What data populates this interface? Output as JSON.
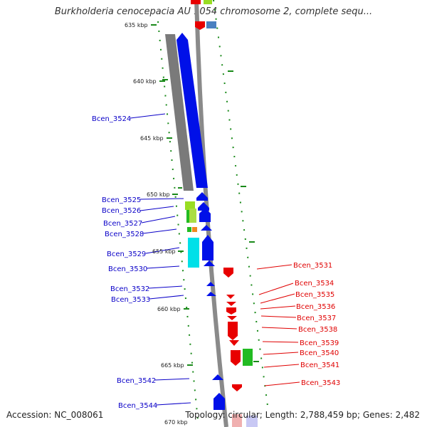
{
  "title": "Burkholderia cenocepacia AU 1054 chromosome 2, complete sequ...",
  "footer": {
    "accession": "Accession: NC_008061",
    "topology": "Topology: circular; Length: 2,788,459 bp; Genes: 2,482"
  },
  "scale_ticks": [
    "635 kbp",
    "640 kbp",
    "645 kbp",
    "650 kbp",
    "655 kbp",
    "660 kbp",
    "665 kbp",
    "670 kbp"
  ],
  "genes_left": [
    "Bcen_3524",
    "Bcen_3525",
    "Bcen_3526",
    "Bcen_3527",
    "Bcen_3528",
    "Bcen_3529",
    "Bcen_3530",
    "Bcen_3532",
    "Bcen_3533",
    "Bcen_3542",
    "Bcen_3544"
  ],
  "genes_right": [
    "Bcen_3531",
    "Bcen_3534",
    "Bcen_3535",
    "Bcen_3536",
    "Bcen_3537",
    "Bcen_3538",
    "Bcen_3539",
    "Bcen_3540",
    "Bcen_3541",
    "Bcen_3543"
  ],
  "colors": {
    "left_label": "#0a00c8",
    "right_label": "#e00000",
    "forward_gene": "#0010e8",
    "reverse_gene": "#e80000",
    "backbone": "#8a8a8a",
    "gc_dash": "#1a8a1a",
    "cyan_gene": "#00e0e8",
    "green_gene": "#22bb22",
    "lime_gene": "#99dd22"
  }
}
